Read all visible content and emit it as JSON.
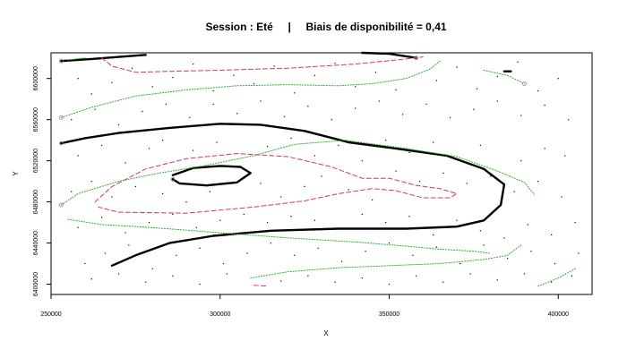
{
  "chart_data": {
    "type": "scatter",
    "title": "Session : Eté     |     Biais de disponibilité = 0,41",
    "xlabel": "X",
    "ylabel": "Y",
    "xlim": [
      250000,
      410000
    ],
    "ylim": [
      6390000,
      6625000
    ],
    "xticks": [
      {
        "value": 250000,
        "label": "250000"
      },
      {
        "value": 300000,
        "label": "300000"
      },
      {
        "value": 350000,
        "label": "350000"
      },
      {
        "value": 400000,
        "label": "400000"
      }
    ],
    "yticks": [
      {
        "value": 6400000,
        "label": "6400000"
      },
      {
        "value": 6440000,
        "label": "6440000"
      },
      {
        "value": 6480000,
        "label": "6480000"
      },
      {
        "value": 6520000,
        "label": "6520000"
      },
      {
        "value": 6560000,
        "label": "6560000"
      },
      {
        "value": 6600000,
        "label": "6600000"
      }
    ],
    "grid": false,
    "legend": "none",
    "series": [
      {
        "role": "contour",
        "style": "solid-thick",
        "color": "#000000",
        "paths": [
          [
            [
              253000,
              6617000
            ],
            [
              262000,
              6619000
            ],
            [
              270000,
              6621000
            ],
            [
              278000,
              6623000
            ]
          ],
          [
            [
              253000,
              6537000
            ],
            [
              260000,
              6542000
            ],
            [
              270000,
              6547000
            ],
            [
              285000,
              6552000
            ],
            [
              300000,
              6556000
            ],
            [
              312000,
              6555000
            ],
            [
              325000,
              6549000
            ],
            [
              338000,
              6538000
            ],
            [
              352000,
              6532000
            ],
            [
              367000,
              6525000
            ],
            [
              378000,
              6512000
            ],
            [
              384000,
              6497000
            ],
            [
              383000,
              6477000
            ],
            [
              378000,
              6462000
            ],
            [
              370000,
              6456000
            ],
            [
              355000,
              6454000
            ],
            [
              335000,
              6454000
            ],
            [
              315000,
              6452000
            ],
            [
              298000,
              6447000
            ],
            [
              285000,
              6440000
            ],
            [
              275000,
              6428000
            ],
            [
              268000,
              6418000
            ]
          ],
          [
            [
              286000,
              6506000
            ],
            [
              292000,
              6513000
            ],
            [
              300000,
              6515000
            ],
            [
              306000,
              6514000
            ],
            [
              309000,
              6508000
            ],
            [
              305000,
              6499000
            ],
            [
              296000,
              6496000
            ],
            [
              288000,
              6498000
            ],
            [
              286000,
              6502000
            ]
          ],
          [
            [
              342000,
              6625000
            ],
            [
              350000,
              6624000
            ],
            [
              358000,
              6620000
            ]
          ],
          [
            [
              384000,
              6607000
            ],
            [
              386000,
              6607000
            ]
          ]
        ]
      },
      {
        "role": "contour",
        "style": "dashed",
        "color": "#d6336c",
        "paths": [
          [
            [
              265000,
              6620000
            ],
            [
              268000,
              6612000
            ],
            [
              275000,
              6606000
            ],
            [
              285000,
              6607000
            ],
            [
              300000,
              6608000
            ],
            [
              320000,
              6610000
            ],
            [
              340000,
              6614000
            ],
            [
              355000,
              6619000
            ],
            [
              360000,
              6621000
            ]
          ],
          [
            [
              263000,
              6480000
            ],
            [
              268000,
              6495000
            ],
            [
              278000,
              6512000
            ],
            [
              290000,
              6522000
            ],
            [
              305000,
              6527000
            ],
            [
              320000,
              6524000
            ],
            [
              333000,
              6514000
            ],
            [
              342000,
              6503000
            ],
            [
              350000,
              6503000
            ],
            [
              358000,
              6496000
            ],
            [
              365000,
              6493000
            ],
            [
              370000,
              6488000
            ],
            [
              368000,
              6484000
            ],
            [
              360000,
              6484000
            ],
            [
              352000,
              6491000
            ],
            [
              345000,
              6493000
            ],
            [
              335000,
              6488000
            ],
            [
              325000,
              6481000
            ],
            [
              310000,
              6475000
            ],
            [
              290000,
              6469000
            ],
            [
              270000,
              6470000
            ],
            [
              264000,
              6475000
            ]
          ],
          [
            [
              310000,
              6399000
            ],
            [
              314000,
              6398000
            ]
          ]
        ]
      },
      {
        "role": "contour",
        "style": "dotted",
        "color": "#33aa33",
        "paths": [
          [
            [
              253000,
              6562000
            ],
            [
              262000,
              6572000
            ],
            [
              275000,
              6583000
            ],
            [
              290000,
              6589000
            ],
            [
              305000,
              6593000
            ],
            [
              320000,
              6594000
            ],
            [
              335000,
              6593000
            ],
            [
              345000,
              6595000
            ],
            [
              355000,
              6600000
            ],
            [
              362000,
              6609000
            ],
            [
              365000,
              6617000
            ]
          ],
          [
            [
              253000,
              6477000
            ],
            [
              258000,
              6488000
            ],
            [
              270000,
              6500000
            ],
            [
              282000,
              6508000
            ],
            [
              295000,
              6515000
            ],
            [
              310000,
              6525000
            ],
            [
              322000,
              6536000
            ],
            [
              337000,
              6540000
            ],
            [
              355000,
              6532000
            ],
            [
              370000,
              6524000
            ],
            [
              382000,
              6510000
            ],
            [
              390000,
              6499000
            ],
            [
              393000,
              6487000
            ]
          ],
          [
            [
              255000,
              6463000
            ],
            [
              265000,
              6458000
            ],
            [
              280000,
              6455000
            ],
            [
              300000,
              6450000
            ],
            [
              320000,
              6445000
            ],
            [
              340000,
              6441000
            ],
            [
              355000,
              6437000
            ],
            [
              365000,
              6434000
            ],
            [
              375000,
              6432000
            ],
            [
              380000,
              6430000
            ]
          ],
          [
            [
              309000,
              6406000
            ],
            [
              320000,
              6412000
            ],
            [
              335000,
              6416000
            ],
            [
              350000,
              6418000
            ],
            [
              365000,
              6420000
            ],
            [
              378000,
              6424000
            ],
            [
              385000,
              6428000
            ],
            [
              389000,
              6438000
            ]
          ],
          [
            [
              394000,
              6398000
            ],
            [
              400000,
              6406000
            ],
            [
              405000,
              6415000
            ]
          ],
          [
            [
              378000,
              6608000
            ],
            [
              385000,
              6603000
            ],
            [
              390000,
              6595000
            ]
          ],
          [
            [
              255000,
              6618000
            ],
            [
              260000,
              6620000
            ]
          ]
        ]
      }
    ],
    "points_description": "scattered sample locations (small dots)",
    "points": [
      [
        258000,
        6600000
      ],
      [
        262000,
        6585000
      ],
      [
        268000,
        6596000
      ],
      [
        274000,
        6610000
      ],
      [
        280000,
        6592000
      ],
      [
        286000,
        6601000
      ],
      [
        292000,
        6614000
      ],
      [
        298000,
        6588000
      ],
      [
        304000,
        6603000
      ],
      [
        310000,
        6595000
      ],
      [
        316000,
        6612000
      ],
      [
        322000,
        6586000
      ],
      [
        328000,
        6603000
      ],
      [
        334000,
        6615000
      ],
      [
        340000,
        6592000
      ],
      [
        346000,
        6606000
      ],
      [
        352000,
        6589000
      ],
      [
        364000,
        6598000
      ],
      [
        370000,
        6611000
      ],
      [
        376000,
        6590000
      ],
      [
        382000,
        6602000
      ],
      [
        388000,
        6616000
      ],
      [
        394000,
        6588000
      ],
      [
        400000,
        6600000
      ],
      [
        256000,
        6560000
      ],
      [
        263000,
        6570000
      ],
      [
        270000,
        6555000
      ],
      [
        277000,
        6568000
      ],
      [
        284000,
        6575000
      ],
      [
        291000,
        6562000
      ],
      [
        298000,
        6575000
      ],
      [
        305000,
        6566000
      ],
      [
        312000,
        6578000
      ],
      [
        319000,
        6563000
      ],
      [
        326000,
        6573000
      ],
      [
        333000,
        6560000
      ],
      [
        340000,
        6571000
      ],
      [
        347000,
        6578000
      ],
      [
        354000,
        6565000
      ],
      [
        361000,
        6575000
      ],
      [
        368000,
        6562000
      ],
      [
        375000,
        6570000
      ],
      [
        382000,
        6578000
      ],
      [
        389000,
        6564000
      ],
      [
        396000,
        6574000
      ],
      [
        403000,
        6560000
      ],
      [
        258000,
        6525000
      ],
      [
        265000,
        6535000
      ],
      [
        272000,
        6518000
      ],
      [
        279000,
        6532000
      ],
      [
        283000,
        6540000
      ],
      [
        292000,
        6530000
      ],
      [
        299000,
        6538000
      ],
      [
        314000,
        6534000
      ],
      [
        321000,
        6542000
      ],
      [
        328000,
        6525000
      ],
      [
        335000,
        6535000
      ],
      [
        342000,
        6520000
      ],
      [
        349000,
        6540000
      ],
      [
        356000,
        6528000
      ],
      [
        363000,
        6538000
      ],
      [
        370000,
        6522000
      ],
      [
        377000,
        6535000
      ],
      [
        389000,
        6520000
      ],
      [
        396000,
        6532000
      ],
      [
        402000,
        6525000
      ],
      [
        256000,
        6490000
      ],
      [
        262000,
        6500000
      ],
      [
        268000,
        6485000
      ],
      [
        275000,
        6495000
      ],
      [
        283000,
        6488000
      ],
      [
        290000,
        6480000
      ],
      [
        297000,
        6490000
      ],
      [
        312000,
        6498000
      ],
      [
        318000,
        6485000
      ],
      [
        325000,
        6495000
      ],
      [
        330000,
        6505000
      ],
      [
        338000,
        6492000
      ],
      [
        345000,
        6482000
      ],
      [
        352000,
        6510000
      ],
      [
        359000,
        6500000
      ],
      [
        366000,
        6508000
      ],
      [
        373000,
        6498000
      ],
      [
        380000,
        6505000
      ],
      [
        387000,
        6490000
      ],
      [
        394000,
        6500000
      ],
      [
        401000,
        6485000
      ],
      [
        258000,
        6455000
      ],
      [
        265000,
        6465000
      ],
      [
        272000,
        6450000
      ],
      [
        279000,
        6460000
      ],
      [
        286000,
        6468000
      ],
      [
        293000,
        6455000
      ],
      [
        300000,
        6462000
      ],
      [
        307000,
        6468000
      ],
      [
        314000,
        6460000
      ],
      [
        321000,
        6466000
      ],
      [
        328000,
        6462000
      ],
      [
        342000,
        6468000
      ],
      [
        349000,
        6460000
      ],
      [
        356000,
        6466000
      ],
      [
        363000,
        6448000
      ],
      [
        370000,
        6462000
      ],
      [
        377000,
        6452000
      ],
      [
        384000,
        6445000
      ],
      [
        391000,
        6458000
      ],
      [
        398000,
        6448000
      ],
      [
        405000,
        6460000
      ],
      [
        260000,
        6420000
      ],
      [
        266000,
        6430000
      ],
      [
        273000,
        6438000
      ],
      [
        280000,
        6415000
      ],
      [
        287000,
        6428000
      ],
      [
        294000,
        6435000
      ],
      [
        301000,
        6420000
      ],
      [
        308000,
        6430000
      ],
      [
        315000,
        6440000
      ],
      [
        322000,
        6428000
      ],
      [
        329000,
        6435000
      ],
      [
        336000,
        6422000
      ],
      [
        343000,
        6432000
      ],
      [
        350000,
        6440000
      ],
      [
        357000,
        6428000
      ],
      [
        364000,
        6436000
      ],
      [
        371000,
        6420000
      ],
      [
        378000,
        6438000
      ],
      [
        385000,
        6425000
      ],
      [
        392000,
        6432000
      ],
      [
        399000,
        6420000
      ],
      [
        406000,
        6430000
      ],
      [
        262000,
        6405000
      ],
      [
        270000,
        6410000
      ],
      [
        278000,
        6402000
      ],
      [
        286000,
        6408000
      ],
      [
        294000,
        6400000
      ],
      [
        302000,
        6410000
      ],
      [
        318000,
        6403000
      ],
      [
        326000,
        6408000
      ],
      [
        334000,
        6402000
      ],
      [
        342000,
        6406000
      ],
      [
        350000,
        6400000
      ],
      [
        358000,
        6408000
      ],
      [
        366000,
        6402000
      ],
      [
        374000,
        6410000
      ],
      [
        382000,
        6404000
      ],
      [
        390000,
        6410000
      ],
      [
        398000,
        6402000
      ],
      [
        404000,
        6408000
      ]
    ],
    "markers": [
      {
        "value": [
          253000,
          6617000
        ],
        "kind": "open-circle"
      },
      {
        "value": [
          253000,
          6537000
        ],
        "kind": "open-circle"
      },
      {
        "value": [
          253000,
          6562000
        ],
        "kind": "open-circle"
      },
      {
        "value": [
          253000,
          6477000
        ],
        "kind": "open-circle"
      },
      {
        "value": [
          358000,
          6620000
        ],
        "kind": "open-circle"
      },
      {
        "value": [
          390000,
          6595000
        ],
        "kind": "open-circle"
      },
      {
        "value": [
          286000,
          6502000
        ],
        "kind": "open-circle"
      }
    ]
  }
}
